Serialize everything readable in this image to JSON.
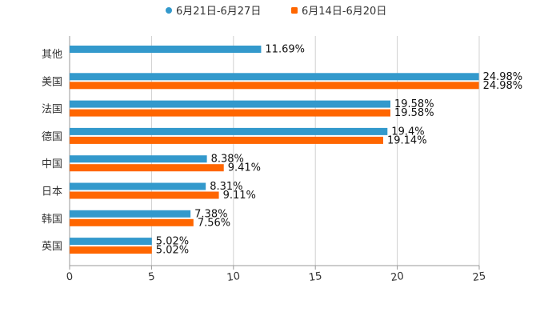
{
  "chart_data": {
    "type": "bar",
    "orientation": "horizontal",
    "categories": [
      "其他",
      "美国",
      "法国",
      "德国",
      "中国",
      "日本",
      "韩国",
      "英国"
    ],
    "series": [
      {
        "name": "6月21日-6月27日",
        "color": "#3399CC",
        "values": [
          11.69,
          24.98,
          19.58,
          19.4,
          8.38,
          8.31,
          7.38,
          5.02
        ],
        "labels": [
          "11.69%",
          "24.98%",
          "19.58%",
          "19.4%",
          "8.38%",
          "8.31%",
          "7.38%",
          "5.02%"
        ]
      },
      {
        "name": "6月14日-6月20日",
        "color": "#FF6600",
        "values": [
          null,
          24.98,
          19.58,
          19.14,
          9.41,
          9.11,
          7.56,
          5.02
        ],
        "labels": [
          null,
          "24.98%",
          "19.58%",
          "19.14%",
          "9.41%",
          "9.11%",
          "7.56%",
          "5.02%"
        ]
      }
    ],
    "xlim": [
      0,
      25
    ],
    "xticks": [
      0,
      5,
      10,
      15,
      20,
      25
    ],
    "xtick_labels": [
      "0",
      "5",
      "10",
      "15",
      "20",
      "25"
    ],
    "grid": true,
    "legend_position": "top-center",
    "title": "",
    "xlabel": "",
    "ylabel": ""
  }
}
